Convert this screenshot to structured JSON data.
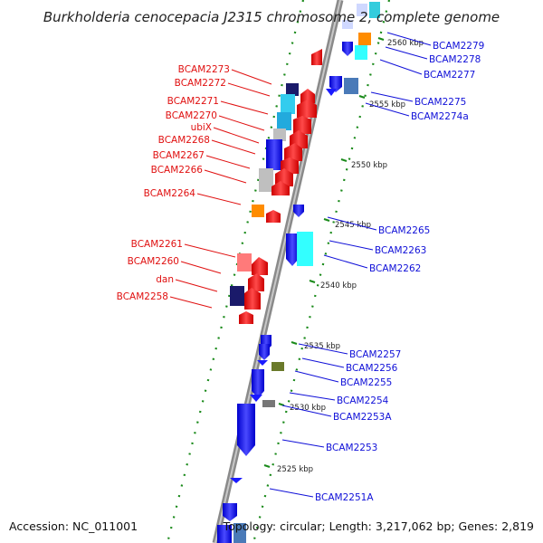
{
  "title": "Burkholderia cenocepacia J2315 chromosome 2, complete genome",
  "footer": {
    "accession": "Accession: NC_011001",
    "summary": "Topology: circular; Length: 3,217,062 bp; Genes: 2,819"
  },
  "scale_labels": [
    "2560 kbp",
    "2555 kbp",
    "2550 kbp",
    "2545 kbp",
    "2540 kbp",
    "2535 kbp",
    "2530 kbp",
    "2525 kbp"
  ],
  "genes_reverse": [
    "BCAM2273",
    "BCAM2272",
    "BCAM2271",
    "BCAM2270",
    "ubiX",
    "BCAM2268",
    "BCAM2267",
    "BCAM2266",
    "BCAM2264",
    "BCAM2261",
    "BCAM2260",
    "dan",
    "BCAM2258"
  ],
  "genes_forward": [
    "BCAM2279",
    "BCAM2278",
    "BCAM2277",
    "BCAM2275",
    "BCAM2274a",
    "BCAM2265",
    "BCAM2263",
    "BCAM2262",
    "BCAM2257",
    "BCAM2256",
    "BCAM2255",
    "BCAM2254",
    "BCAM2253A",
    "BCAM2253",
    "BCAM2251A"
  ],
  "colors": {
    "reverse_label": "#e01010",
    "forward_label": "#1010d8",
    "reverse_feature": "#ff1a1a",
    "forward_feature": "#1a1aff",
    "backbone": "#8a8a8a",
    "dots": "#1a8a1a"
  }
}
